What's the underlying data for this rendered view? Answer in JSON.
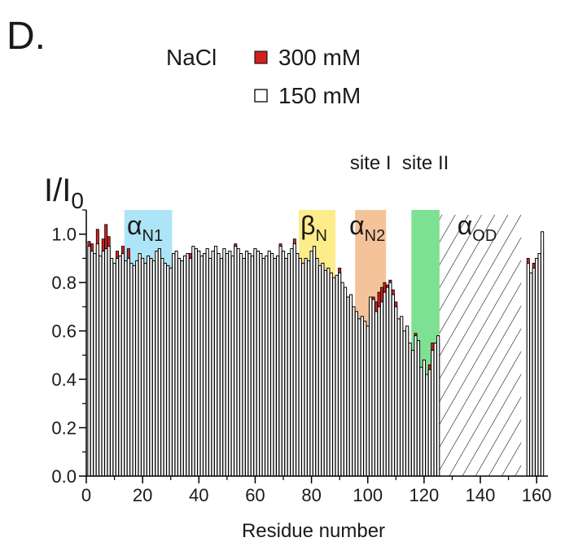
{
  "panel_label": "D.",
  "legend": {
    "title": "NaCl",
    "items": [
      {
        "label": "300 mM",
        "color": "#d42020",
        "filled": true
      },
      {
        "label": "150 mM",
        "color": "#ffffff",
        "filled": false
      }
    ]
  },
  "chart_data": {
    "type": "bar",
    "ylabel_main": "I/I",
    "ylabel_sub": "0",
    "xlabel": "Residue number",
    "xlim": [
      0,
      164
    ],
    "ylim": [
      0,
      1.1
    ],
    "xticks": [
      "0",
      "20",
      "40",
      "60",
      "80",
      "100",
      "120",
      "140",
      "160"
    ],
    "yticks": [
      "0.0",
      "0.2",
      "0.4",
      "0.6",
      "0.8",
      "1.0"
    ],
    "regions": [
      {
        "label": "α",
        "sub": "N1",
        "top": "",
        "start": 14,
        "end": 30,
        "color": "#aee4f7"
      },
      {
        "label": "β",
        "sub": "N",
        "top": "",
        "start": 76,
        "end": 88,
        "color": "#fdec8a"
      },
      {
        "label": "α",
        "sub": "N2",
        "top": "site I",
        "start": 96,
        "end": 106,
        "color": "#f5c39a"
      },
      {
        "label": "",
        "sub": "",
        "top": "site II",
        "start": 116,
        "end": 125,
        "color": "#7ee092"
      },
      {
        "label": "α",
        "sub": "OD",
        "top": "",
        "start": 126,
        "end": 154,
        "color": "hatch"
      }
    ],
    "series": [
      {
        "name": "150 mM",
        "x": [
          1,
          2,
          3,
          4,
          5,
          6,
          7,
          8,
          9,
          10,
          11,
          12,
          13,
          14,
          15,
          16,
          17,
          18,
          19,
          20,
          21,
          22,
          23,
          24,
          25,
          26,
          27,
          28,
          29,
          30,
          31,
          32,
          33,
          34,
          35,
          36,
          37,
          38,
          39,
          40,
          41,
          42,
          43,
          44,
          45,
          46,
          47,
          48,
          49,
          50,
          51,
          52,
          53,
          54,
          55,
          56,
          57,
          58,
          59,
          60,
          61,
          62,
          63,
          64,
          65,
          66,
          67,
          68,
          69,
          70,
          71,
          72,
          73,
          74,
          75,
          76,
          77,
          78,
          79,
          80,
          81,
          82,
          83,
          84,
          85,
          86,
          87,
          88,
          89,
          90,
          91,
          92,
          93,
          94,
          95,
          96,
          97,
          98,
          99,
          100,
          101,
          102,
          103,
          104,
          105,
          106,
          107,
          108,
          109,
          110,
          111,
          112,
          113,
          114,
          115,
          116,
          117,
          118,
          119,
          120,
          121,
          122,
          123,
          124,
          125,
          157,
          158,
          159,
          160,
          161,
          162
        ],
        "values": [
          0.95,
          0.93,
          0.92,
          0.96,
          0.91,
          0.93,
          0.94,
          0.95,
          0.9,
          0.88,
          0.9,
          0.91,
          0.92,
          0.89,
          0.9,
          0.88,
          0.87,
          0.89,
          0.92,
          0.9,
          0.88,
          0.91,
          0.9,
          0.89,
          0.93,
          0.94,
          0.9,
          0.88,
          0.87,
          0.86,
          0.92,
          0.93,
          0.9,
          0.89,
          0.91,
          0.92,
          0.9,
          0.95,
          0.94,
          0.93,
          0.91,
          0.92,
          0.94,
          0.9,
          0.93,
          0.95,
          0.92,
          0.9,
          0.94,
          0.92,
          0.93,
          0.91,
          0.95,
          0.94,
          0.92,
          0.9,
          0.93,
          0.92,
          0.91,
          0.94,
          0.93,
          0.92,
          0.9,
          0.91,
          0.93,
          0.92,
          0.9,
          0.91,
          0.95,
          0.93,
          0.9,
          0.92,
          0.94,
          0.96,
          0.92,
          0.9,
          0.88,
          0.9,
          0.89,
          0.93,
          0.95,
          0.9,
          0.87,
          0.88,
          0.85,
          0.86,
          0.84,
          0.82,
          0.83,
          0.84,
          0.8,
          0.78,
          0.74,
          0.75,
          0.7,
          0.68,
          0.65,
          0.66,
          0.64,
          0.62,
          0.74,
          0.73,
          0.68,
          0.7,
          0.72,
          0.76,
          0.78,
          0.8,
          0.75,
          0.7,
          0.65,
          0.66,
          0.6,
          0.62,
          0.55,
          0.52,
          0.58,
          0.56,
          0.45,
          0.48,
          0.42,
          0.44,
          0.52,
          0.55,
          0.58,
          0.88,
          0.84,
          0.86,
          0.9,
          0.92,
          1.01
        ]
      },
      {
        "name": "300 mM",
        "x": [
          1,
          2,
          3,
          4,
          5,
          6,
          7,
          8,
          9,
          10,
          11,
          12,
          13,
          14,
          15,
          16,
          17,
          18,
          19,
          20,
          21,
          22,
          23,
          24,
          25,
          26,
          27,
          28,
          29,
          30,
          31,
          32,
          33,
          34,
          35,
          36,
          37,
          38,
          39,
          40,
          41,
          42,
          43,
          44,
          45,
          46,
          47,
          48,
          49,
          50,
          51,
          52,
          53,
          54,
          55,
          56,
          57,
          58,
          59,
          60,
          61,
          62,
          63,
          64,
          65,
          66,
          67,
          68,
          69,
          70,
          71,
          72,
          73,
          74,
          75,
          76,
          77,
          78,
          79,
          80,
          81,
          82,
          83,
          84,
          85,
          86,
          87,
          88,
          89,
          90,
          91,
          92,
          93,
          94,
          95,
          96,
          97,
          98,
          99,
          100,
          101,
          102,
          103,
          104,
          105,
          106,
          107,
          108,
          109,
          110,
          111,
          112,
          113,
          114,
          115,
          116,
          117,
          118,
          119,
          120,
          121,
          122,
          123,
          124,
          125,
          157,
          158,
          159,
          160,
          161,
          162
        ],
        "values": [
          0.97,
          0.96,
          0.9,
          1.02,
          0.88,
          0.98,
          1.04,
          0.99,
          0.87,
          0.86,
          0.93,
          0.89,
          0.95,
          0.87,
          0.94,
          0.85,
          0.86,
          0.88,
          0.9,
          0.86,
          0.84,
          0.87,
          0.86,
          0.85,
          0.88,
          0.9,
          0.86,
          0.83,
          0.84,
          0.82,
          0.88,
          0.9,
          0.85,
          0.84,
          0.87,
          0.88,
          0.92,
          0.9,
          0.91,
          0.89,
          0.87,
          0.9,
          0.93,
          0.86,
          0.88,
          0.93,
          0.9,
          0.85,
          0.91,
          0.87,
          0.89,
          0.88,
          0.96,
          0.92,
          0.88,
          0.86,
          0.9,
          0.88,
          0.87,
          0.93,
          0.91,
          0.88,
          0.86,
          0.87,
          0.91,
          0.88,
          0.84,
          0.89,
          0.96,
          0.9,
          0.86,
          0.88,
          0.92,
          0.98,
          0.86,
          0.88,
          0.86,
          0.88,
          0.86,
          0.9,
          0.93,
          0.87,
          0.84,
          0.86,
          0.82,
          0.84,
          0.81,
          0.8,
          0.82,
          0.86,
          0.78,
          0.75,
          0.7,
          0.66,
          0.6,
          0.64,
          0.58,
          0.62,
          0.59,
          0.6,
          0.72,
          0.74,
          0.72,
          0.76,
          0.78,
          0.8,
          0.79,
          0.81,
          0.77,
          0.72,
          0.63,
          0.62,
          0.58,
          0.6,
          0.5,
          0.48,
          0.59,
          0.54,
          0.42,
          0.38,
          0.4,
          0.46,
          0.55,
          0.54,
          0.55,
          0.9,
          0.8,
          0.88,
          0.9,
          0.92,
          0.95
        ]
      }
    ]
  }
}
